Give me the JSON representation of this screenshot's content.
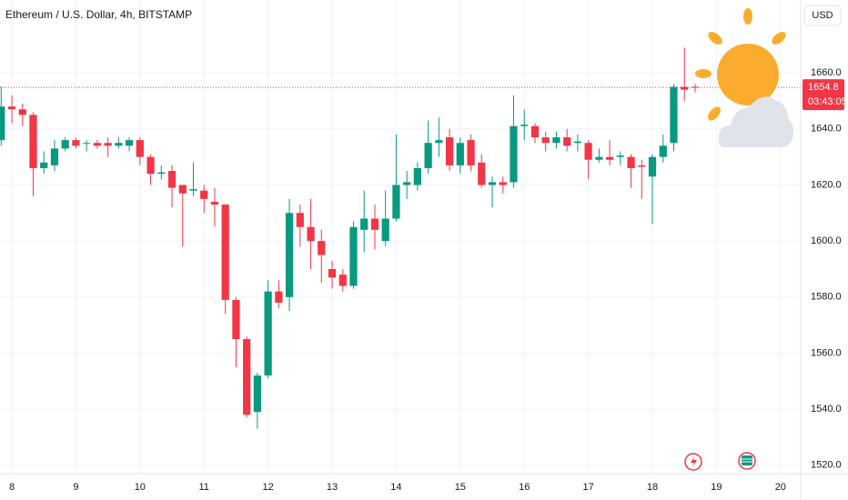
{
  "chart_data": {
    "type": "candlestick",
    "title": "Ethereum / U.S. Dollar, 4h, BITSTAMP",
    "currency": "USD",
    "last_price": 1654.8,
    "countdown": "03:43:05",
    "up_color": "#089981",
    "down_color": "#f23645",
    "grid": true,
    "xlim": [
      7.815,
      20.315
    ],
    "xticks": [
      8,
      9,
      10,
      11,
      12,
      13,
      14,
      15,
      16,
      17,
      18,
      19,
      20
    ],
    "ylim": [
      1517,
      1686
    ],
    "yticks": [
      {
        "value": 1520,
        "label": "1520.0"
      },
      {
        "value": 1540,
        "label": "1540.0"
      },
      {
        "value": 1560,
        "label": "1560.0"
      },
      {
        "value": 1580,
        "label": "1580.0"
      },
      {
        "value": 1600,
        "label": "1600.0"
      },
      {
        "value": 1620,
        "label": "1620.0"
      },
      {
        "value": 1640,
        "label": "1640.0"
      },
      {
        "value": 1660,
        "label": "1660.0"
      }
    ],
    "x": [
      7.833,
      8.0,
      8.167,
      8.333,
      8.5,
      8.667,
      8.833,
      9.0,
      9.167,
      9.333,
      9.5,
      9.667,
      9.833,
      10.0,
      10.167,
      10.333,
      10.5,
      10.667,
      10.833,
      11.0,
      11.167,
      11.333,
      11.5,
      11.667,
      11.833,
      12.0,
      12.167,
      12.333,
      12.5,
      12.667,
      12.833,
      13.0,
      13.167,
      13.333,
      13.5,
      13.667,
      13.833,
      14.0,
      14.167,
      14.333,
      14.5,
      14.667,
      14.833,
      15.0,
      15.167,
      15.333,
      15.5,
      15.667,
      15.833,
      16.0,
      16.167,
      16.333,
      16.5,
      16.667,
      16.833,
      17.0,
      17.167,
      17.333,
      17.5,
      17.667,
      17.833,
      18.0,
      18.167,
      18.333,
      18.5,
      18.667
    ],
    "open": [
      1636,
      1648,
      1647,
      1645,
      1626,
      1627,
      1633,
      1636,
      1635,
      1635,
      1635,
      1634,
      1634,
      1636,
      1630,
      1624,
      1625,
      1620,
      1618,
      1618,
      1614,
      1613,
      1579,
      1565,
      1539,
      1552,
      1582,
      1580,
      1610,
      1605,
      1600,
      1590,
      1588,
      1584,
      1604,
      1608,
      1600,
      1608,
      1620,
      1620,
      1626,
      1635,
      1637,
      1627,
      1636,
      1628,
      1620,
      1621,
      1621,
      1641,
      1641,
      1637,
      1635,
      1637,
      1635,
      1635,
      1629,
      1630,
      1630,
      1630,
      1627,
      1623,
      1630,
      1635,
      1655,
      1655
    ],
    "high": [
      1655,
      1652,
      1649,
      1646,
      1632,
      1636,
      1637,
      1637,
      1636,
      1636,
      1637,
      1637,
      1637,
      1637,
      1631,
      1627,
      1627,
      1620,
      1628,
      1620,
      1619,
      1613,
      1580,
      1566,
      1553,
      1586,
      1586,
      1615,
      1613,
      1615,
      1604,
      1593,
      1590,
      1607,
      1618,
      1613,
      1618,
      1638,
      1625,
      1628,
      1643,
      1644,
      1640,
      1637,
      1638,
      1631,
      1623,
      1623,
      1652,
      1647,
      1642,
      1639,
      1639,
      1640,
      1638,
      1636,
      1633,
      1636,
      1632,
      1631,
      1629,
      1631,
      1638,
      1656,
      1669,
      1656
    ],
    "low": [
      1634,
      1642,
      1641,
      1616,
      1624,
      1625,
      1632,
      1633,
      1632,
      1633,
      1630,
      1633,
      1632,
      1627,
      1620,
      1622,
      1612,
      1598,
      1616,
      1610,
      1605,
      1574,
      1555,
      1537,
      1533,
      1551,
      1576,
      1575,
      1598,
      1590,
      1585,
      1583,
      1582,
      1583,
      1596,
      1597,
      1598,
      1607,
      1615,
      1618,
      1624,
      1630,
      1625,
      1624,
      1625,
      1619,
      1612,
      1617,
      1619,
      1636,
      1635,
      1632,
      1633,
      1632,
      1632,
      1622,
      1628,
      1627,
      1627,
      1619,
      1615,
      1606,
      1628,
      1632,
      1650,
      1653
    ],
    "close": [
      1648,
      1647,
      1645,
      1626,
      1628,
      1633,
      1636,
      1634,
      1635,
      1634,
      1634,
      1635,
      1636,
      1630,
      1624,
      1624.5,
      1619,
      1617,
      1618.5,
      1615,
      1613,
      1579,
      1565,
      1538,
      1552,
      1582,
      1578,
      1610,
      1605,
      1600,
      1595,
      1587,
      1584,
      1605,
      1608,
      1604,
      1608,
      1620,
      1621,
      1626,
      1635,
      1636,
      1627,
      1635,
      1627,
      1620,
      1621,
      1620,
      1641,
      1641.5,
      1637,
      1635,
      1637,
      1634,
      1635.5,
      1629,
      1630,
      1629,
      1630.5,
      1626,
      1626.5,
      1630,
      1634,
      1655,
      1654,
      1654.8
    ]
  }
}
